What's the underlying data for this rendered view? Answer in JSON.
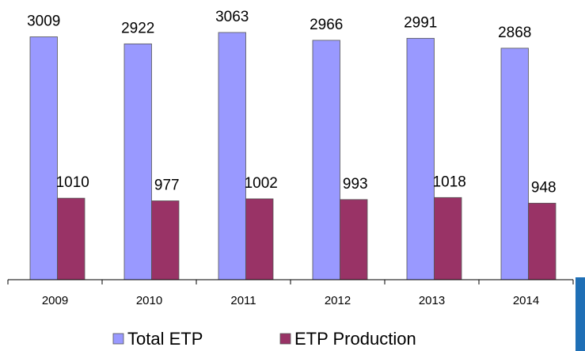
{
  "chart_data": {
    "type": "bar",
    "categories": [
      "2009",
      "2010",
      "2011",
      "2012",
      "2013",
      "2014"
    ],
    "series": [
      {
        "name": "Total ETP",
        "color": "#9999ff",
        "values": [
          3009,
          2922,
          3063,
          2966,
          2991,
          2868
        ]
      },
      {
        "name": "ETP Production",
        "color": "#993366",
        "values": [
          1010,
          977,
          1002,
          993,
          1018,
          948
        ]
      }
    ],
    "legend": "bottom"
  }
}
